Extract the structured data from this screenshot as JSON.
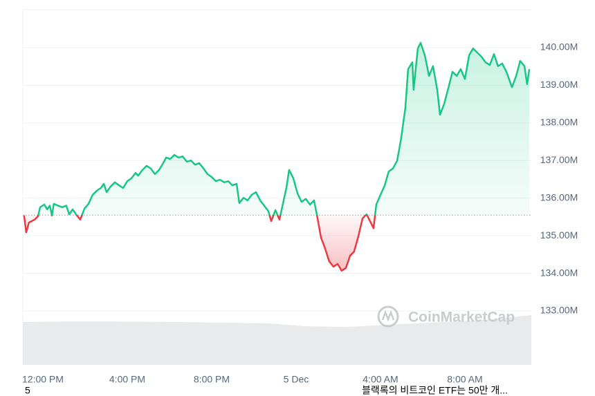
{
  "chart_data": {
    "type": "line",
    "x": [
      -0.89,
      -0.79,
      -0.66,
      -0.39,
      -0.23,
      -0.13,
      0.07,
      0.2,
      0.33,
      0.43,
      0.52,
      0.72,
      0.92,
      1.11,
      1.25,
      1.41,
      1.57,
      1.77,
      1.97,
      2.16,
      2.36,
      2.56,
      2.75,
      2.89,
      3.02,
      3.21,
      3.41,
      3.61,
      3.8,
      4.0,
      4.2,
      4.39,
      4.52,
      4.72,
      4.92,
      5.11,
      5.31,
      5.51,
      5.7,
      5.84,
      6.03,
      6.23,
      6.43,
      6.62,
      6.82,
      7.02,
      7.21,
      7.41,
      7.61,
      7.8,
      8.0,
      8.2,
      8.39,
      8.59,
      8.79,
      8.98,
      9.18,
      9.31,
      9.51,
      9.7,
      9.9,
      10.1,
      10.3,
      10.49,
      10.69,
      10.82,
      11.02,
      11.21,
      11.41,
      11.54,
      11.67,
      11.87,
      12.07,
      12.26,
      12.46,
      12.66,
      12.85,
      12.98,
      13.18,
      13.38,
      13.57,
      13.77,
      13.97,
      14.16,
      14.36,
      14.56,
      14.75,
      14.95,
      15.15,
      15.34,
      15.54,
      15.67,
      15.8,
      16.0,
      16.2,
      16.39,
      16.59,
      16.79,
      16.98,
      17.18,
      17.31,
      17.51,
      17.57,
      17.77,
      17.9,
      18.1,
      18.3,
      18.49,
      18.69,
      18.82,
      19.02,
      19.21,
      19.41,
      19.61,
      19.8,
      20.0,
      20.2,
      20.39,
      20.59,
      20.79,
      20.98,
      21.18,
      21.38,
      21.57,
      21.77,
      21.97,
      22.23,
      22.43,
      22.62,
      22.82,
      22.95,
      23.05
    ],
    "series": [
      {
        "color": "#16c784",
        "below_color": "#ea3943",
        "values": [
          135.54,
          135.09,
          135.35,
          135.43,
          135.52,
          135.76,
          135.83,
          135.7,
          135.8,
          135.54,
          135.85,
          135.8,
          135.76,
          135.8,
          135.57,
          135.7,
          135.57,
          135.43,
          135.72,
          135.85,
          136.09,
          136.2,
          136.27,
          136.38,
          136.16,
          136.31,
          136.42,
          136.34,
          136.27,
          136.45,
          136.53,
          136.67,
          136.6,
          136.75,
          136.86,
          136.79,
          136.64,
          136.75,
          136.93,
          137.08,
          137.04,
          137.15,
          137.08,
          137.11,
          136.97,
          137.0,
          136.89,
          136.93,
          136.79,
          136.64,
          136.56,
          136.45,
          136.49,
          136.42,
          136.45,
          136.34,
          136.38,
          135.87,
          136.01,
          135.94,
          136.09,
          136.16,
          135.94,
          135.8,
          135.65,
          135.39,
          135.68,
          135.43,
          135.94,
          136.27,
          136.75,
          136.53,
          136.12,
          135.9,
          135.98,
          135.83,
          135.94,
          135.57,
          134.95,
          134.65,
          134.32,
          134.18,
          134.25,
          134.07,
          134.14,
          134.47,
          134.58,
          134.98,
          135.46,
          135.57,
          135.35,
          135.2,
          135.83,
          136.09,
          136.34,
          136.71,
          136.79,
          137.0,
          137.59,
          138.4,
          139.43,
          139.61,
          138.88,
          139.98,
          140.13,
          139.8,
          139.25,
          139.51,
          138.88,
          138.22,
          138.51,
          138.92,
          139.36,
          139.25,
          139.43,
          139.17,
          139.8,
          139.98,
          139.87,
          139.76,
          139.61,
          139.54,
          139.83,
          139.51,
          139.58,
          139.36,
          138.95,
          139.25,
          139.65,
          139.51,
          139.03,
          139.43
        ]
      }
    ],
    "baseline": 135.55,
    "xlim": [
      -0.95,
      23.1
    ],
    "xticks": [
      {
        "value": 0,
        "label": "12:00 PM"
      },
      {
        "value": 4,
        "label": "4:00 PM"
      },
      {
        "value": 8,
        "label": "8:00 PM"
      },
      {
        "value": 12,
        "label": "5 Dec"
      },
      {
        "value": 16,
        "label": "4:00 AM"
      },
      {
        "value": 20,
        "label": "8:00 AM"
      }
    ],
    "ylim": [
      131.5,
      141
    ],
    "yticks": [
      {
        "value": 133,
        "label": "133.00M"
      },
      {
        "value": 134,
        "label": "134.00M"
      },
      {
        "value": 135,
        "label": "135.00M"
      },
      {
        "value": 136,
        "label": "136.00M"
      },
      {
        "value": 137,
        "label": "137.00M"
      },
      {
        "value": 138,
        "label": "138.00M"
      },
      {
        "value": 139,
        "label": "139.00M"
      },
      {
        "value": 140,
        "label": "140.00M"
      }
    ],
    "grid": true,
    "watermark": "CoinMarketCap"
  },
  "footer": {
    "left": "5",
    "right": "블랙록의 비트코인 ETF는 50만 개..."
  }
}
